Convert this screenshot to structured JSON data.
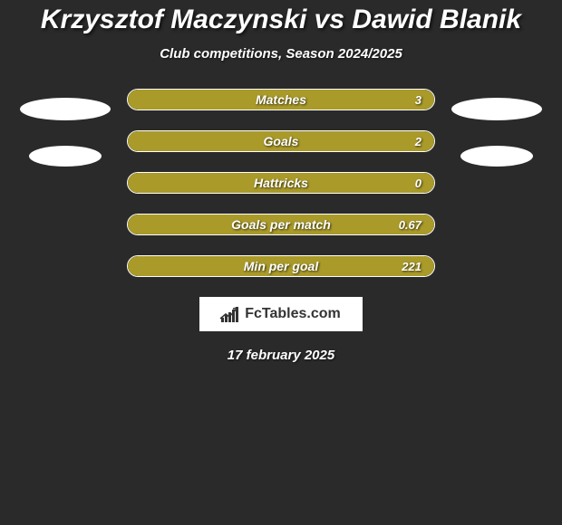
{
  "title": "Krzysztof Maczynski vs Dawid Blanik",
  "subtitle": "Club competitions, Season 2024/2025",
  "date": "17 february 2025",
  "logo_text": "FcTables.com",
  "colors": {
    "background": "#2a2a2a",
    "bar_fill": "#a99a2a",
    "bar_border": "#ffffff",
    "text": "#ffffff",
    "ellipse": "#ffffff"
  },
  "stats": [
    {
      "label": "Matches",
      "value": "3",
      "fill_pct": 100
    },
    {
      "label": "Goals",
      "value": "2",
      "fill_pct": 100
    },
    {
      "label": "Hattricks",
      "value": "0",
      "fill_pct": 100
    },
    {
      "label": "Goals per match",
      "value": "0.67",
      "fill_pct": 100
    },
    {
      "label": "Min per goal",
      "value": "221",
      "fill_pct": 100
    }
  ],
  "left_ellipses": 2,
  "right_ellipses": 2,
  "logo_bars": [
    {
      "h": 5
    },
    {
      "h": 8
    },
    {
      "h": 11
    },
    {
      "h": 14
    },
    {
      "h": 17
    }
  ]
}
